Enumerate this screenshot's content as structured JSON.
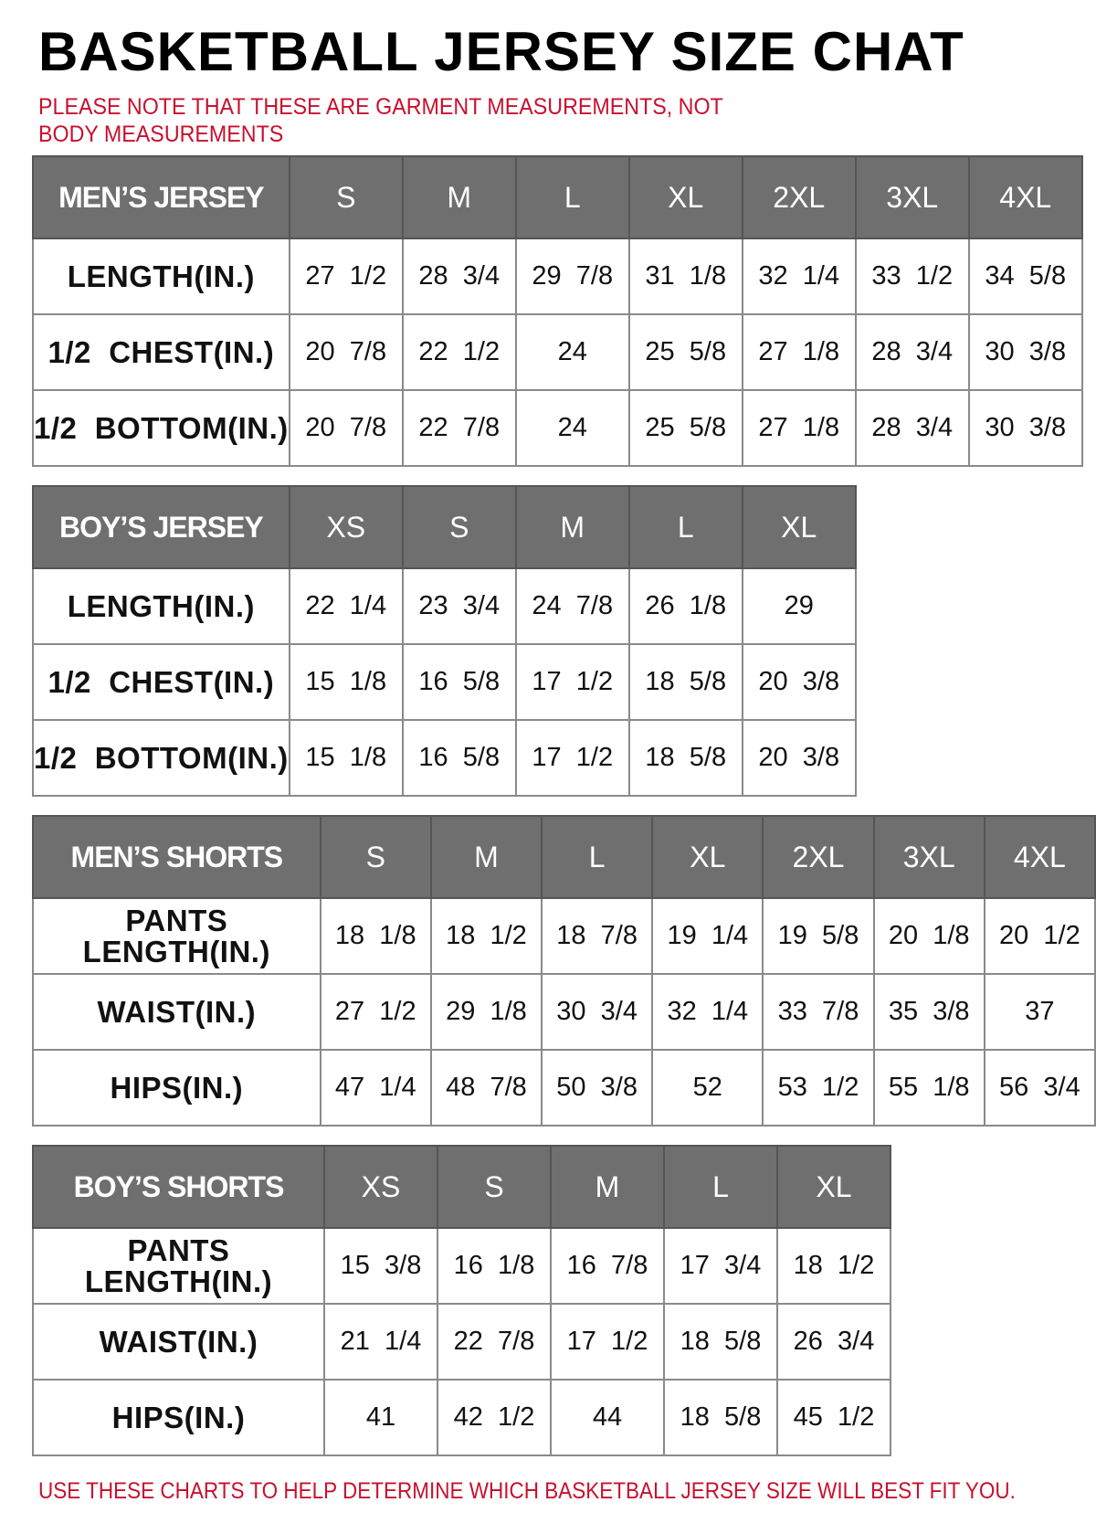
{
  "title": "BASKETBALL JERSEY SIZE CHAT",
  "note": "PLEASE NOTE THAT THESE ARE GARMENT MEASUREMENTS, NOT BODY MEASUREMENTS",
  "footer": "USE THESE CHARTS TO HELP DETERMINE WHICH BASKETBALL JERSEY SIZE WILL BEST FIT YOU.",
  "colors": {
    "header_bg": "#6f6f6f",
    "note_red": "#c8102e"
  },
  "tables": [
    {
      "name": "MEN’S JERSEY",
      "sizes": [
        "S",
        "M",
        "L",
        "XL",
        "2XL",
        "3XL",
        "4XL"
      ],
      "rows": [
        {
          "label": "LENGTH(IN.)",
          "values": [
            "27  1/2",
            "28  3/4",
            "29  7/8",
            "31  1/8",
            "32  1/4",
            "33  1/2",
            "34  5/8"
          ]
        },
        {
          "label": "1/2  CHEST(IN.)",
          "values": [
            "20  7/8",
            "22  1/2",
            "24",
            "25  5/8",
            "27  1/8",
            "28  3/4",
            "30  3/8"
          ]
        },
        {
          "label": "1/2  BOTTOM(IN.)",
          "values": [
            "20  7/8",
            "22  7/8",
            "24",
            "25  5/8",
            "27  1/8",
            "28  3/4",
            "30  3/8"
          ]
        }
      ]
    },
    {
      "name": "BOY’S JERSEY",
      "sizes": [
        "XS",
        "S",
        "M",
        "L",
        "XL"
      ],
      "rows": [
        {
          "label": "LENGTH(IN.)",
          "values": [
            "22  1/4",
            "23  3/4",
            "24  7/8",
            "26  1/8",
            "29"
          ]
        },
        {
          "label": "1/2  CHEST(IN.)",
          "values": [
            "15  1/8",
            "16  5/8",
            "17  1/2",
            "18  5/8",
            "20  3/8"
          ]
        },
        {
          "label": "1/2  BOTTOM(IN.)",
          "values": [
            "15  1/8",
            "16  5/8",
            "17  1/2",
            "18  5/8",
            "20  3/8"
          ]
        }
      ]
    },
    {
      "name": "MEN’S SHORTS",
      "sizes": [
        "S",
        "M",
        "L",
        "XL",
        "2XL",
        "3XL",
        "4XL"
      ],
      "rows": [
        {
          "label": "PANTS LENGTH(IN.)",
          "values": [
            "18  1/8",
            "18  1/2",
            "18  7/8",
            "19  1/4",
            "19  5/8",
            "20  1/8",
            "20  1/2"
          ]
        },
        {
          "label": "WAIST(IN.)",
          "values": [
            "27  1/2",
            "29  1/8",
            "30  3/4",
            "32  1/4",
            "33  7/8",
            "35  3/8",
            "37"
          ]
        },
        {
          "label": "HIPS(IN.)",
          "values": [
            "47  1/4",
            "48  7/8",
            "50  3/8",
            "52",
            "53  1/2",
            "55  1/8",
            "56  3/4"
          ]
        }
      ]
    },
    {
      "name": "BOY’S SHORTS",
      "sizes": [
        "XS",
        "S",
        "M",
        "L",
        "XL"
      ],
      "rows": [
        {
          "label": "PANTS LENGTH(IN.)",
          "values": [
            "15  3/8",
            "16  1/8",
            "16  7/8",
            "17  3/4",
            "18  1/2"
          ]
        },
        {
          "label": "WAIST(IN.)",
          "values": [
            "21  1/4",
            "22  7/8",
            "17  1/2",
            "18  5/8",
            "26  3/4"
          ]
        },
        {
          "label": "HIPS(IN.)",
          "values": [
            "41",
            "42  1/2",
            "44",
            "18  5/8",
            "45  1/2"
          ]
        }
      ]
    }
  ]
}
